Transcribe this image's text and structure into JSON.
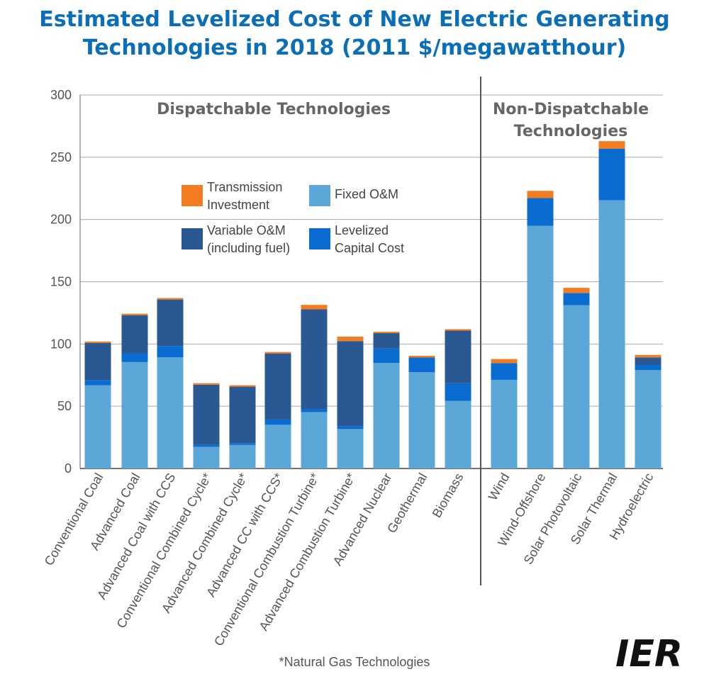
{
  "title_line1": "Estimated Levelized Cost of New Electric Generating",
  "title_line2": "Technologies in 2018 (2011 $/megawatthour)",
  "footnote": "*Natural Gas Technologies",
  "logo_text": "IER",
  "colors": {
    "fixed_om": "#5ba7d8",
    "levelized_capital": "#0a6cd0",
    "variable_om": "#2a5893",
    "transmission": "#f47b20",
    "title": "#0b6fb8"
  },
  "chart_data": {
    "type": "bar",
    "stacked": true,
    "title": "Estimated Levelized Cost of New Electric Generating Technologies in 2018 (2011 $/megawatthour)",
    "ylim": [
      0,
      300
    ],
    "yticks": [
      0,
      50,
      100,
      150,
      200,
      250,
      300
    ],
    "grid": true,
    "groups": [
      {
        "label": "Dispatchable Technologies",
        "label_lines": [
          "Dispatchable Technologies"
        ],
        "start": 0,
        "end": 10
      },
      {
        "label": "Non-Dispatchable Technologies",
        "label_lines": [
          "Non-Dispatchable",
          "Technologies"
        ],
        "start": 11,
        "end": 15
      }
    ],
    "categories": [
      "Conventional Coal",
      "Advanced Coal",
      "Advanced Coal with CCS",
      "Conventional Combined Cycle*",
      "Advanced Combined Cycle*",
      "Advanced CC with CCS*",
      "Conventional Combustion Turbine*",
      "Advanced Combustion Turbine*",
      "Advanced Nuclear",
      "Geothermal",
      "Biomass",
      "Wind",
      "Wind-Offshore",
      "Solar Photovoltaic",
      "Solar Thermal",
      "Hydroelectric"
    ],
    "series": [
      {
        "key": "fixed_om",
        "values": [
          66.8,
          85.5,
          89.3,
          17.4,
          18.9,
          35.1,
          45.3,
          31.7,
          84.8,
          77.3,
          54.3,
          71.2,
          194.9,
          131.1,
          215.5,
          79.0
        ]
      },
      {
        "key": "levelized_capital",
        "values": [
          4.3,
          7.0,
          9.0,
          1.5,
          1.5,
          4.2,
          2.5,
          2.3,
          11.6,
          11.8,
          14.1,
          13.5,
          22.3,
          9.9,
          41.4,
          4.1
        ]
      },
      {
        "key": "variable_om",
        "values": [
          29.7,
          30.6,
          37.4,
          48.4,
          45.3,
          53.1,
          80.0,
          68.3,
          12.3,
          0.0,
          42.3,
          0.0,
          0.0,
          0.0,
          0.0,
          6.1
        ]
      },
      {
        "key": "transmission",
        "values": [
          1.2,
          1.2,
          1.2,
          1.2,
          1.2,
          1.2,
          3.6,
          3.6,
          1.1,
          1.4,
          1.2,
          3.2,
          5.8,
          4.1,
          6.0,
          2.0
        ]
      }
    ],
    "legend": [
      {
        "key": "transmission",
        "lines": [
          "Transmission",
          "Investment"
        ]
      },
      {
        "key": "fixed_om",
        "lines": [
          "Fixed O&M"
        ]
      },
      {
        "key": "variable_om",
        "lines": [
          "Variable O&M",
          "(including fuel)"
        ]
      },
      {
        "key": "levelized_capital",
        "lines": [
          "Levelized",
          "Capital Cost"
        ]
      }
    ]
  }
}
